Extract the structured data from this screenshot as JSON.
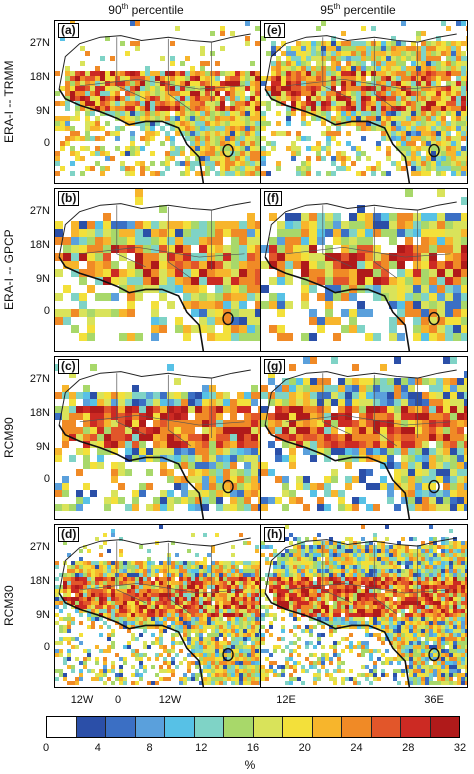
{
  "columns": [
    {
      "title_base": "90",
      "title_sup": "th",
      "title_rest": " percentile"
    },
    {
      "title_base": "95",
      "title_sup": "th",
      "title_rest": " percentile"
    }
  ],
  "rows": [
    {
      "label": "ERA-I -- TRMM"
    },
    {
      "label": "ERA-I -- GPCP"
    },
    {
      "label": "RCM90"
    },
    {
      "label": "RCM30"
    }
  ],
  "panels": [
    {
      "letter": "(a)",
      "pattern": "trmm90"
    },
    {
      "letter": "(e)",
      "pattern": "trmm95"
    },
    {
      "letter": "(b)",
      "pattern": "gpcp90"
    },
    {
      "letter": "(f)",
      "pattern": "gpcp95"
    },
    {
      "letter": "(c)",
      "pattern": "rcm90_90"
    },
    {
      "letter": "(g)",
      "pattern": "rcm90_95"
    },
    {
      "letter": "(d)",
      "pattern": "rcm30_90"
    },
    {
      "letter": "(h)",
      "pattern": "rcm30_95"
    }
  ],
  "lat_ticks": [
    "27N",
    "18N",
    "9N",
    "0"
  ],
  "lon_ticks": [
    "12W",
    "0",
    "12W",
    "12E",
    "36E"
  ],
  "colorbar": {
    "colors": [
      "#ffffff",
      "#2b4fa8",
      "#3b6fc4",
      "#5aa0dc",
      "#57c1e6",
      "#7fd3c6",
      "#a8d86a",
      "#d9e35a",
      "#f3e03a",
      "#f7b52c",
      "#f08a26",
      "#e2562a",
      "#cc2a23",
      "#b01a1a"
    ],
    "tick_labels": [
      "0",
      "4",
      "8",
      "12",
      "16",
      "20",
      "24",
      "28",
      "32"
    ],
    "unit": "%"
  }
}
